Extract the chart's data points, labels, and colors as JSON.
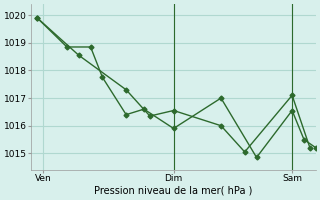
{
  "title": "",
  "xlabel": "Pression niveau de la mer( hPa )",
  "background_color": "#d8f0ec",
  "grid_color": "#b0d8d0",
  "line_color": "#2d6a2d",
  "yticks": [
    1015,
    1016,
    1017,
    1018,
    1019,
    1020
  ],
  "ylim": [
    1014.4,
    1020.4
  ],
  "xlim": [
    0,
    48
  ],
  "xtick_positions": [
    2,
    24,
    44
  ],
  "xtick_labels": [
    "Ven",
    "Dim",
    "Sam"
  ],
  "vlines": [
    24,
    44
  ],
  "series1_x": [
    1,
    8,
    16,
    20,
    24,
    32,
    36,
    44,
    47
  ],
  "series1_y": [
    1019.9,
    1018.55,
    1017.3,
    1016.35,
    1016.55,
    1016.0,
    1015.05,
    1017.1,
    1015.2
  ],
  "series2_x": [
    1,
    6,
    10,
    12,
    16,
    19,
    24,
    32,
    38,
    44,
    46,
    48
  ],
  "series2_y": [
    1019.9,
    1018.85,
    1018.85,
    1017.75,
    1016.4,
    1016.6,
    1015.9,
    1017.0,
    1014.85,
    1016.55,
    1015.5,
    1015.2
  ]
}
